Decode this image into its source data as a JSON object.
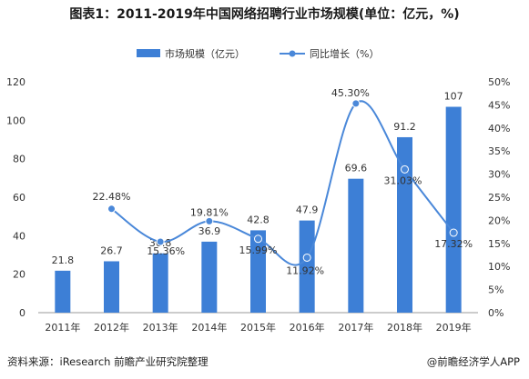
{
  "title": "图表1：2011-2019年中国网络招聘行业市场规模(单位：亿元，%)",
  "footer": {
    "source": "资料来源：iResearch 前瞻产业研究院整理",
    "brand": "@前瞻经济学人APP"
  },
  "colors": {
    "bar": "#3d7fd6",
    "line": "#4a88d9",
    "axis_text": "#333333",
    "axis_line": "#999999"
  },
  "chart_data": {
    "type": "bar+line",
    "categories": [
      "2011年",
      "2012年",
      "2013年",
      "2014年",
      "2015年",
      "2016年",
      "2017年",
      "2018年",
      "2019年"
    ],
    "series": [
      {
        "name": "市场规模（亿元）",
        "type": "bar",
        "axis": "left",
        "values": [
          21.8,
          26.7,
          30.8,
          36.9,
          42.8,
          47.9,
          69.6,
          91.2,
          107
        ],
        "labels": [
          "21.8",
          "26.7",
          "30.8",
          "36.9",
          "42.8",
          "47.9",
          "69.6",
          "91.2",
          "107"
        ]
      },
      {
        "name": "同比增长（%）",
        "type": "line",
        "axis": "right",
        "values": [
          null,
          22.48,
          15.36,
          19.81,
          15.99,
          11.92,
          45.3,
          31.03,
          17.32
        ],
        "labels": [
          "",
          "22.48%",
          "15.36%",
          "19.81%",
          "15.99%",
          "11.92%",
          "45.30%",
          "31.03%",
          "17.32%"
        ]
      }
    ],
    "left_axis": {
      "min": 0,
      "max": 120,
      "ticks": [
        "0",
        "20",
        "40",
        "60",
        "80",
        "100",
        "120"
      ]
    },
    "right_axis": {
      "min": 0,
      "max": 50,
      "ticks": [
        "0%",
        "5%",
        "10%",
        "15%",
        "20%",
        "25%",
        "30%",
        "35%",
        "40%",
        "45%",
        "50%"
      ]
    },
    "legend_position": "top-center",
    "grid": false
  }
}
